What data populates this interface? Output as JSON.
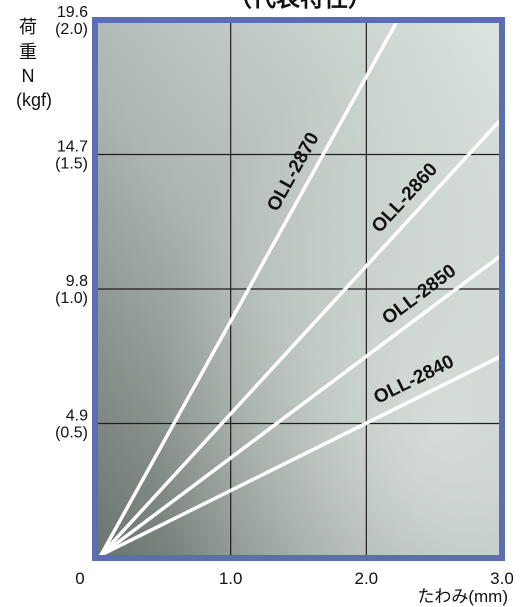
{
  "chart_data": {
    "type": "line",
    "title": "（代表特性）",
    "xlabel": "たわみ(mm)",
    "ylabel": [
      "荷",
      "重",
      "N",
      "(kgf)"
    ],
    "xlim": [
      0,
      3.0
    ],
    "ylim": [
      0,
      19.6
    ],
    "x_ticks": [
      {
        "value": 0,
        "label": "0"
      },
      {
        "value": 1.0,
        "label": "1.0"
      },
      {
        "value": 2.0,
        "label": "2.0"
      },
      {
        "value": 3.0,
        "label": "3.0"
      }
    ],
    "y_ticks": [
      {
        "value": 4.9,
        "label": "4.9",
        "sub": "(0.5)"
      },
      {
        "value": 9.8,
        "label": "9.8",
        "sub": "(1.0)"
      },
      {
        "value": 14.7,
        "label": "14.7",
        "sub": "(1.5)"
      },
      {
        "value": 19.6,
        "label": "19.6",
        "sub": "(2.0)"
      }
    ],
    "grid": true,
    "series": [
      {
        "name": "OLL-2870",
        "x": [
          0,
          2.22
        ],
        "y": [
          0,
          19.6
        ]
      },
      {
        "name": "OLL-2860",
        "x": [
          0,
          3.0
        ],
        "y": [
          0,
          16.0
        ]
      },
      {
        "name": "OLL-2850",
        "x": [
          0,
          3.0
        ],
        "y": [
          0,
          11.0
        ]
      },
      {
        "name": "OLL-2840",
        "x": [
          0,
          3.0
        ],
        "y": [
          0,
          7.3
        ]
      }
    ],
    "colors": {
      "frame": "#5b6db5",
      "line": "#ffffff",
      "grid": "#1e1e1e",
      "bg_dark": "#6e7672",
      "bg_light": "#dfe6e2"
    }
  }
}
